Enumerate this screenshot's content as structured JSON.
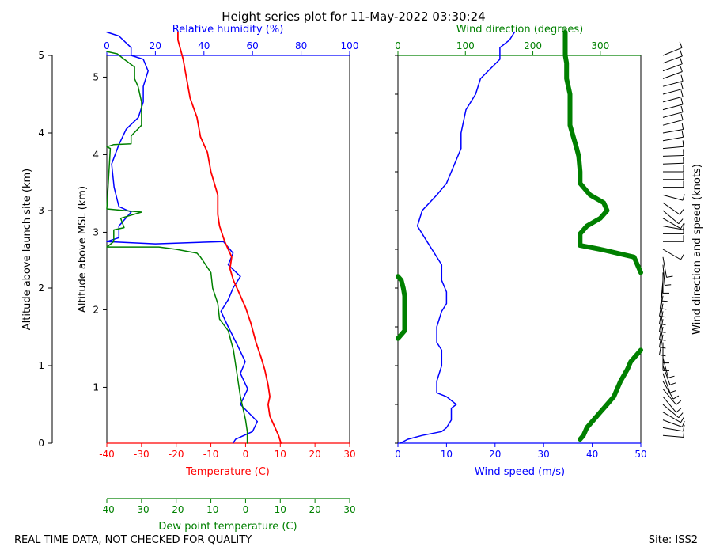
{
  "title": "Height series plot for 11-May-2022 03:30:24",
  "footer_left": "REAL TIME DATA, NOT CHECKED FOR QUALITY",
  "footer_right": "Site: ISS2",
  "colors": {
    "temp": "#ff0000",
    "dewpoint": "#008000",
    "rh": "#0000ff",
    "wspd": "#0000ff",
    "wdir": "#008000",
    "barb": "#000000"
  },
  "chart_data": [
    {
      "type": "line",
      "name": "thermo-panel",
      "xlabel_temp": "Temperature (C)",
      "xlabel_dewpoint": "Dew point temperature (C)",
      "xlabel_rh": "Relative humidity (%)",
      "ylabel_msl": "Altitude above MSL (km)",
      "ylabel_site": "Altitude above launch site (km)",
      "xlim_temp": [
        -40,
        30
      ],
      "xlim_rh": [
        0,
        100
      ],
      "ylim_site_km": [
        0,
        5
      ],
      "temp_ticks": [
        "-40",
        "-30",
        "-20",
        "-10",
        "0",
        "10",
        "20",
        "30"
      ],
      "rh_ticks": [
        "0",
        "20",
        "40",
        "60",
        "80",
        "100"
      ],
      "msl_ticks": [
        "1",
        "2",
        "3",
        "4",
        "5"
      ],
      "site_ticks": [
        "0",
        "1",
        "2",
        "3",
        "4",
        "5"
      ],
      "site_offset_km": 0.28,
      "series": [
        {
          "name": "Temperature",
          "x_axis": "temp",
          "points": [
            [
              10.2,
              0
            ],
            [
              9.5,
              0.1
            ],
            [
              8.5,
              0.2
            ],
            [
              7,
              0.35
            ],
            [
              6.5,
              0.5
            ],
            [
              7,
              0.6
            ],
            [
              6.5,
              0.75
            ],
            [
              5.5,
              0.95
            ],
            [
              4.5,
              1.1
            ],
            [
              3,
              1.3
            ],
            [
              1.5,
              1.55
            ],
            [
              0,
              1.75
            ],
            [
              -2,
              1.95
            ],
            [
              -3.5,
              2.1
            ],
            [
              -4.5,
              2.25
            ],
            [
              -4,
              2.4
            ],
            [
              -6,
              2.6
            ],
            [
              -7.5,
              2.8
            ],
            [
              -8,
              2.95
            ],
            [
              -8,
              3.2
            ],
            [
              -10,
              3.5
            ],
            [
              -11,
              3.75
            ],
            [
              -13,
              3.95
            ],
            [
              -14,
              4.2
            ],
            [
              -16,
              4.45
            ],
            [
              -17,
              4.7
            ],
            [
              -18,
              4.95
            ],
            [
              -19.5,
              5.2
            ],
            [
              -19.5,
              5.3
            ]
          ]
        },
        {
          "name": "Dew point",
          "x_axis": "temp",
          "points": [
            [
              0.5,
              0
            ],
            [
              0.5,
              0.15
            ],
            [
              0,
              0.3
            ],
            [
              -1.5,
              0.6
            ],
            [
              -2.5,
              0.9
            ],
            [
              -3.5,
              1.2
            ],
            [
              -5,
              1.45
            ],
            [
              -7.5,
              1.6
            ],
            [
              -8,
              1.8
            ],
            [
              -9.5,
              2.0
            ],
            [
              -10,
              2.2
            ],
            [
              -13,
              2.4
            ],
            [
              -14,
              2.45
            ],
            [
              -20,
              2.5
            ],
            [
              -25,
              2.53
            ],
            [
              -40,
              2.53
            ],
            [
              -38,
              2.6
            ],
            [
              -38,
              2.75
            ],
            [
              -35,
              2.78
            ],
            [
              -36,
              2.9
            ],
            [
              -30,
              2.98
            ],
            [
              -40,
              3.02
            ],
            [
              -39,
              3.8
            ],
            [
              -40,
              3.82
            ],
            [
              -38,
              3.85
            ],
            [
              -33,
              3.86
            ],
            [
              -33,
              3.96
            ],
            [
              -30,
              4.1
            ],
            [
              -30,
              4.4
            ],
            [
              -31,
              4.6
            ],
            [
              -32,
              4.7
            ],
            [
              -32,
              4.85
            ],
            [
              -35,
              4.95
            ],
            [
              -37,
              5.02
            ],
            [
              -40,
              5.05
            ]
          ]
        },
        {
          "name": "Relative humidity",
          "x_axis": "rh",
          "points": [
            [
              52,
              0
            ],
            [
              53,
              0.05
            ],
            [
              60,
              0.15
            ],
            [
              62,
              0.28
            ],
            [
              55,
              0.5
            ],
            [
              58,
              0.7
            ],
            [
              55,
              0.9
            ],
            [
              57,
              1.05
            ],
            [
              54,
              1.25
            ],
            [
              50,
              1.5
            ],
            [
              47,
              1.7
            ],
            [
              50,
              1.85
            ],
            [
              52,
              2.0
            ],
            [
              55,
              2.15
            ],
            [
              50,
              2.3
            ],
            [
              52,
              2.45
            ],
            [
              48,
              2.6
            ],
            [
              20,
              2.57
            ],
            [
              0,
              2.6
            ],
            [
              5,
              2.65
            ],
            [
              5,
              2.8
            ],
            [
              10,
              2.98
            ],
            [
              5,
              3.05
            ],
            [
              3,
              3.3
            ],
            [
              2,
              3.6
            ],
            [
              5,
              3.85
            ],
            [
              8,
              4.05
            ],
            [
              13,
              4.2
            ],
            [
              15,
              4.4
            ],
            [
              15,
              4.6
            ],
            [
              17,
              4.8
            ],
            [
              15,
              4.95
            ],
            [
              10,
              5.0
            ],
            [
              10,
              5.1
            ],
            [
              5,
              5.25
            ],
            [
              0,
              5.3
            ]
          ]
        }
      ]
    },
    {
      "type": "line",
      "name": "wind-panel",
      "xlabel_wspd": "Wind speed (m/s)",
      "xlabel_wdir": "Wind direction (degrees)",
      "barb_label": "Wind direction and speed (knots)",
      "xlim_wspd": [
        0,
        50
      ],
      "xlim_wdir": [
        0,
        360
      ],
      "wspd_ticks": [
        "0",
        "10",
        "20",
        "30",
        "40",
        "50"
      ],
      "wdir_ticks": [
        "0",
        "100",
        "200",
        "300"
      ],
      "series": [
        {
          "name": "Wind speed",
          "x_axis": "wspd",
          "points": [
            [
              0.5,
              0
            ],
            [
              2,
              0.05
            ],
            [
              5,
              0.1
            ],
            [
              9,
              0.15
            ],
            [
              10,
              0.2
            ],
            [
              11,
              0.3
            ],
            [
              11,
              0.45
            ],
            [
              12,
              0.5
            ],
            [
              10,
              0.6
            ],
            [
              8,
              0.65
            ],
            [
              8,
              0.8
            ],
            [
              9,
              1.0
            ],
            [
              9,
              1.2
            ],
            [
              8,
              1.3
            ],
            [
              8,
              1.5
            ],
            [
              9,
              1.7
            ],
            [
              10,
              1.8
            ],
            [
              10,
              1.95
            ],
            [
              9,
              2.1
            ],
            [
              9,
              2.3
            ],
            [
              7,
              2.5
            ],
            [
              6,
              2.6
            ],
            [
              4,
              2.8
            ],
            [
              5,
              3.0
            ],
            [
              8,
              3.2
            ],
            [
              10,
              3.35
            ],
            [
              11,
              3.5
            ],
            [
              13,
              3.8
            ],
            [
              13,
              4.0
            ],
            [
              14,
              4.3
            ],
            [
              16,
              4.5
            ],
            [
              17,
              4.7
            ],
            [
              21,
              4.95
            ],
            [
              21,
              5.1
            ],
            [
              23,
              5.2
            ],
            [
              24,
              5.3
            ]
          ]
        },
        {
          "name": "Wind direction",
          "x_axis": "wdir",
          "points": [
            [
              270,
              0.05
            ],
            [
              275,
              0.1
            ],
            [
              280,
              0.2
            ],
            [
              290,
              0.3
            ],
            [
              300,
              0.4
            ],
            [
              310,
              0.5
            ],
            [
              320,
              0.6
            ],
            [
              330,
              0.8
            ],
            [
              340,
              0.95
            ],
            [
              345,
              1.05
            ],
            [
              355,
              1.15
            ],
            [
              360,
              1.2
            ],
            null,
            [
              0,
              1.35
            ],
            [
              10,
              1.45
            ],
            [
              10,
              1.7
            ],
            [
              10,
              1.9
            ],
            [
              8,
              2.0
            ],
            [
              5,
              2.1
            ],
            [
              0,
              2.15
            ],
            null,
            [
              360,
              2.2
            ],
            [
              355,
              2.3
            ],
            [
              350,
              2.4
            ],
            [
              300,
              2.5
            ],
            [
              270,
              2.55
            ],
            [
              270,
              2.7
            ],
            [
              280,
              2.8
            ],
            [
              300,
              2.9
            ],
            [
              310,
              3.0
            ],
            [
              305,
              3.1
            ],
            [
              285,
              3.2
            ],
            [
              270,
              3.35
            ],
            [
              270,
              3.5
            ],
            [
              268,
              3.7
            ],
            [
              265,
              3.8
            ],
            [
              260,
              3.95
            ],
            [
              255,
              4.1
            ],
            [
              255,
              4.3
            ],
            [
              255,
              4.5
            ],
            [
              250,
              4.7
            ],
            [
              250,
              4.9
            ],
            [
              248,
              5.0
            ],
            [
              248,
              5.2
            ],
            [
              248,
              5.3
            ]
          ]
        }
      ]
    }
  ]
}
